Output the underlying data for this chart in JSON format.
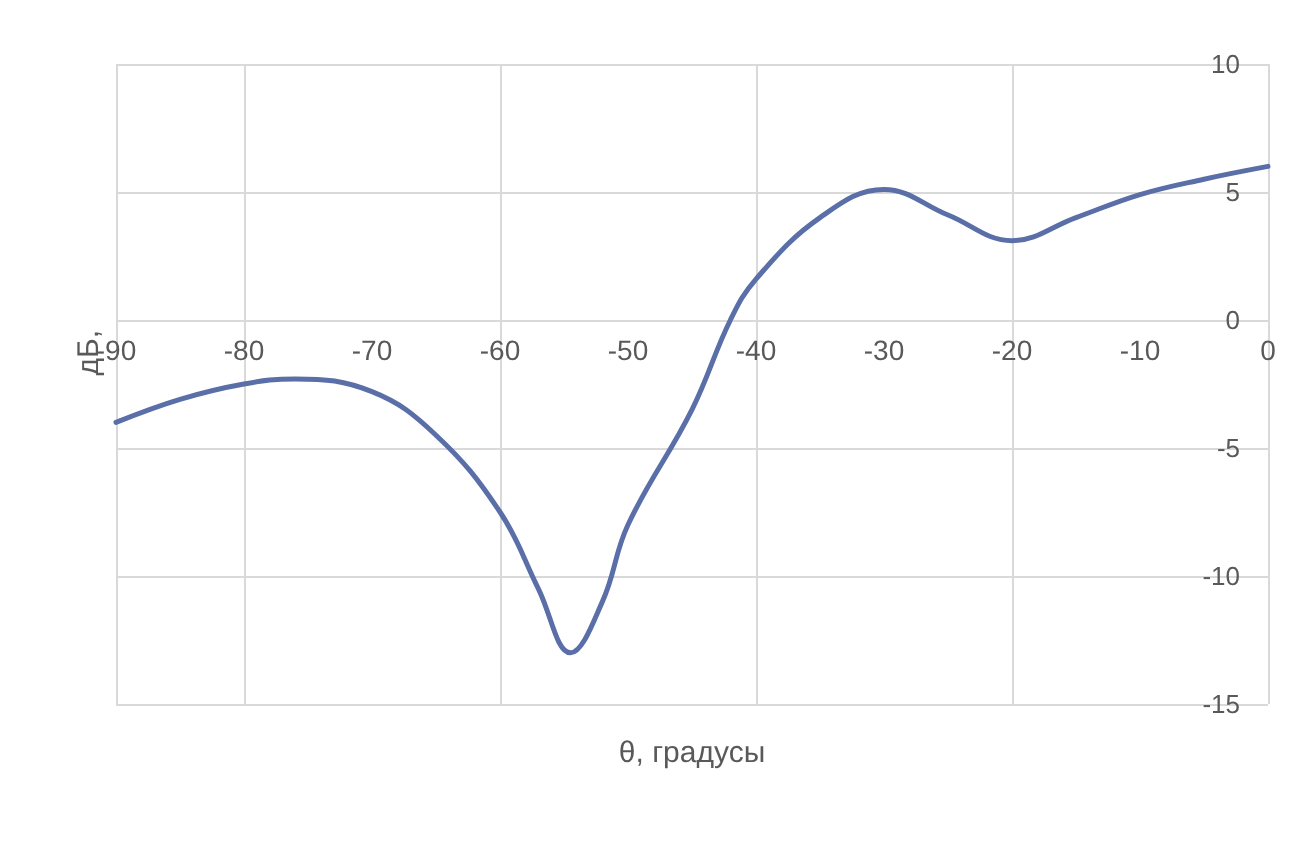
{
  "chart_data": {
    "type": "line",
    "xlabel": "θ, градусы",
    "ylabel": "дБ,",
    "x": [
      -90,
      -85,
      -80,
      -76,
      -70,
      -65,
      -60,
      -57,
      -54.5,
      -52,
      -50,
      -45,
      -42,
      -40,
      -35,
      -30,
      -25,
      -20,
      -15,
      -10,
      -5,
      0
    ],
    "series": [
      {
        "color": "#5a6ea8",
        "values": [
          -4.0,
          -3.1,
          -2.5,
          -2.3,
          -2.8,
          -4.5,
          -7.5,
          -10.5,
          -13.0,
          -11.0,
          -8.0,
          -3.5,
          0,
          1.6,
          4.0,
          5.1,
          4.1,
          3.1,
          4.0,
          4.9,
          5.5,
          6.0
        ]
      }
    ],
    "xlim": [
      -90,
      0
    ],
    "xticks": [
      -90,
      -80,
      -70,
      -60,
      -50,
      -40,
      -30,
      -20,
      -10,
      0
    ],
    "ylim": [
      -15,
      10
    ],
    "yticks": [
      -15,
      -10,
      -5,
      0,
      5,
      10
    ],
    "grid": true,
    "marker": "none",
    "line_style": "solid"
  }
}
